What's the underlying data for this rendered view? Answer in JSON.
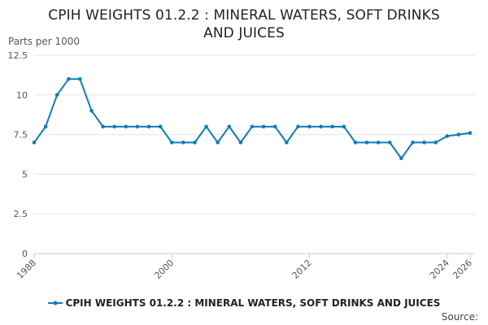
{
  "chart_data": {
    "type": "line",
    "title_lines": [
      "CPIH WEIGHTS 01.2.2 : MINERAL WATERS, SOFT DRINKS",
      "AND JUICES"
    ],
    "ylabel": "Parts per 1000",
    "xlabel": "",
    "ylim": [
      0,
      12.5
    ],
    "yticks": [
      "0",
      "2.5",
      "5",
      "7.5",
      "10",
      "12.5"
    ],
    "ytick_values": [
      0,
      2.5,
      5,
      7.5,
      10,
      12.5
    ],
    "xlim": [
      1988,
      2026
    ],
    "xticks": [
      1988,
      2000,
      2012,
      2024,
      2026
    ],
    "grid": true,
    "legend_position": "bottom",
    "series": [
      {
        "name": "CPIH WEIGHTS 01.2.2 : MINERAL WATERS, SOFT DRINKS AND JUICES",
        "color": "#0f7cb8",
        "x": [
          1988,
          1989,
          1990,
          1991,
          1992,
          1993,
          1994,
          1995,
          1996,
          1997,
          1998,
          1999,
          2000,
          2001,
          2002,
          2003,
          2004,
          2005,
          2006,
          2007,
          2008,
          2009,
          2010,
          2011,
          2012,
          2013,
          2014,
          2015,
          2016,
          2017,
          2018,
          2019,
          2020,
          2021,
          2022,
          2023,
          2024,
          2025,
          2026
        ],
        "values": [
          7,
          8,
          10,
          11,
          11,
          9,
          8,
          8,
          8,
          8,
          8,
          8,
          7,
          7,
          7,
          8,
          7,
          8,
          7,
          8,
          8,
          8,
          7,
          8,
          8,
          8,
          8,
          8,
          7,
          7,
          7,
          7,
          6,
          7,
          7,
          7,
          7.4,
          7.5,
          7.6
        ]
      }
    ]
  },
  "source_label": "Source:"
}
